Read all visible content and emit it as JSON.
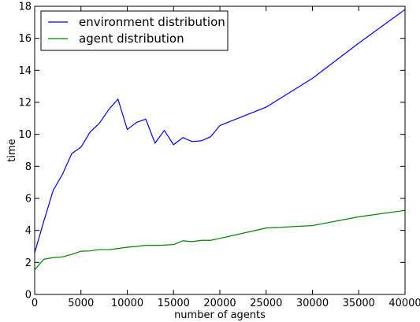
{
  "chart_data": {
    "type": "line",
    "xlabel": "number of agents",
    "ylabel": "time",
    "xlim": [
      0,
      40000
    ],
    "ylim": [
      0,
      18
    ],
    "xticks": [
      0,
      5000,
      10000,
      15000,
      20000,
      25000,
      30000,
      35000,
      40000
    ],
    "yticks": [
      0,
      2,
      4,
      6,
      8,
      10,
      12,
      14,
      16,
      18
    ],
    "grid": false,
    "legend_position": "upper-left",
    "series": [
      {
        "name": "environment distribution",
        "color": "#0000ff",
        "x": [
          0,
          1000,
          2000,
          3000,
          4000,
          5000,
          6000,
          7000,
          8000,
          9000,
          10000,
          11000,
          12000,
          13000,
          14000,
          15000,
          16000,
          17000,
          18000,
          19000,
          20000,
          25000,
          30000,
          35000,
          40000
        ],
        "y": [
          2.6,
          4.6,
          6.5,
          7.5,
          8.8,
          9.2,
          10.15,
          10.7,
          11.55,
          12.2,
          10.3,
          10.75,
          10.95,
          9.45,
          10.25,
          9.35,
          9.8,
          9.55,
          9.6,
          9.85,
          10.55,
          11.7,
          13.5,
          15.7,
          17.8
        ]
      },
      {
        "name": "agent distribution",
        "color": "#008000",
        "x": [
          0,
          1000,
          2000,
          3000,
          4000,
          5000,
          6000,
          7000,
          8000,
          9000,
          10000,
          11000,
          12000,
          13000,
          14000,
          15000,
          16000,
          17000,
          18000,
          19000,
          20000,
          25000,
          30000,
          35000,
          40000
        ],
        "y": [
          1.55,
          2.2,
          2.3,
          2.35,
          2.5,
          2.7,
          2.72,
          2.8,
          2.8,
          2.87,
          2.95,
          3.0,
          3.07,
          3.06,
          3.08,
          3.12,
          3.35,
          3.3,
          3.38,
          3.38,
          3.5,
          4.15,
          4.3,
          4.85,
          5.25
        ]
      }
    ]
  }
}
